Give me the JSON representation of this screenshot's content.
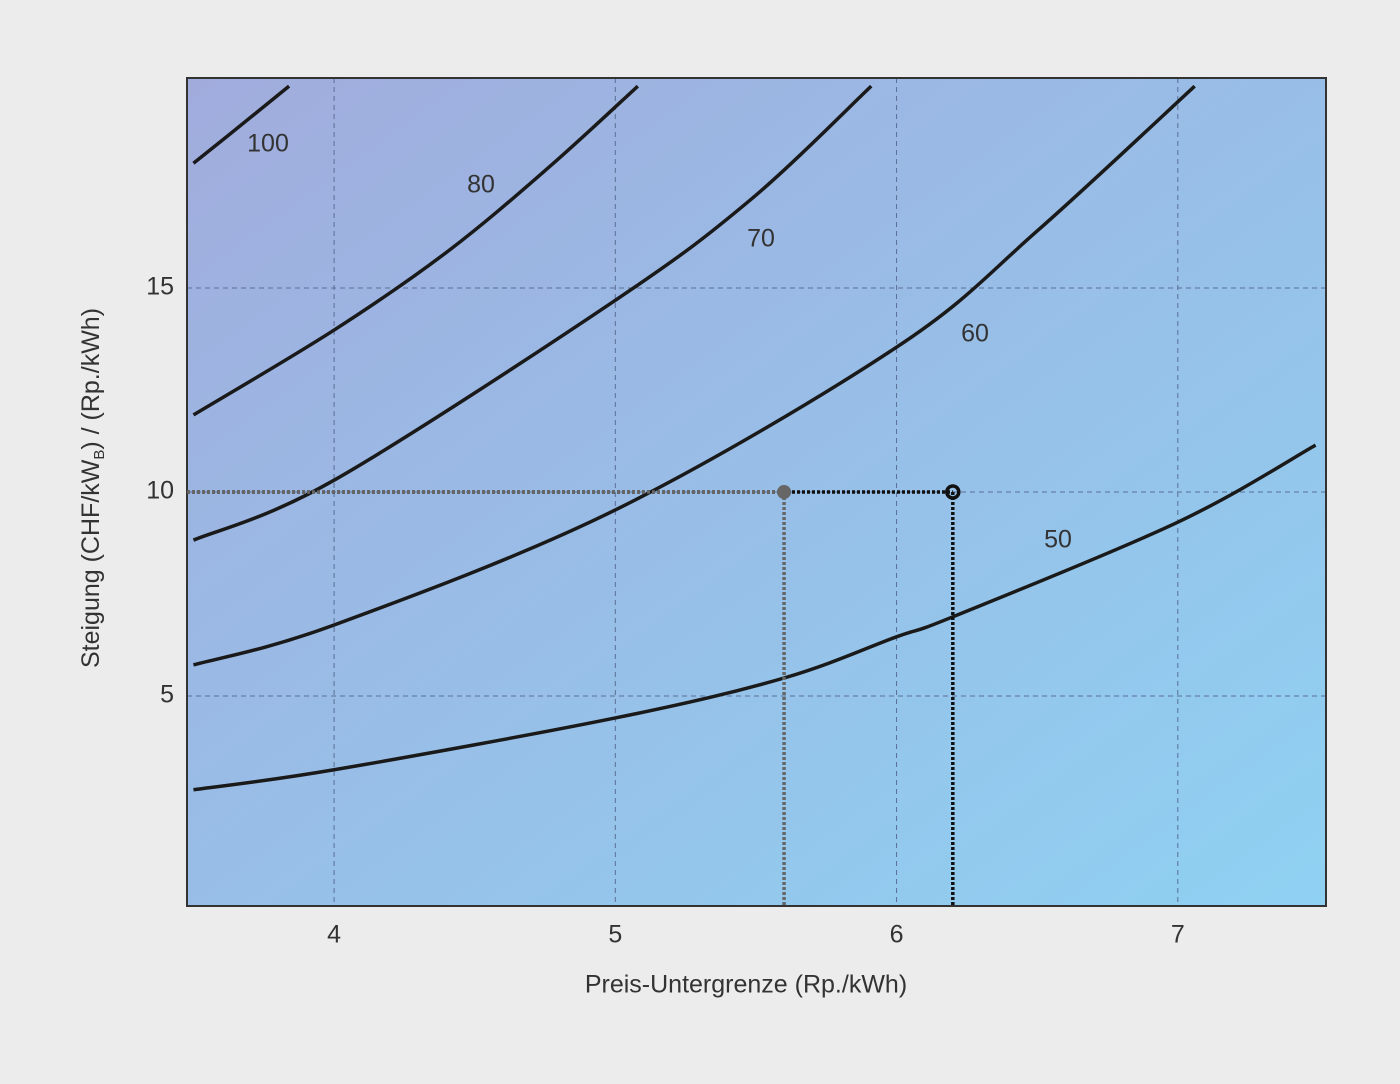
{
  "chart_data": {
    "type": "line",
    "x_label": "Preis-Untergrenze (Rp./kWh)",
    "y_label": {
      "text": "Steigung (CHF/kW",
      "subscript": "B",
      "suffix": ") / (Rp./kWh)"
    },
    "xlim": [
      3.477,
      7.527
    ],
    "ylim": [
      -0.15,
      20.15
    ],
    "xticks": [
      4,
      5,
      6,
      7
    ],
    "yticks": [
      5,
      10,
      15
    ],
    "grid": true,
    "series": [
      {
        "name": "100",
        "color": "#1a1a1a",
        "x": [
          3.5,
          3.67,
          3.84
        ],
        "values": [
          18.06,
          19.0,
          19.95
        ]
      },
      {
        "name": "80",
        "color": "#1a1a1a",
        "x": [
          3.5,
          4,
          4.41,
          4.77,
          5.08
        ],
        "values": [
          11.89,
          13.97,
          15.93,
          18.0,
          19.95
        ]
      },
      {
        "name": "70",
        "color": "#1a1a1a",
        "x": [
          3.5,
          4,
          5,
          5.48,
          5.91
        ],
        "values": [
          8.82,
          10.29,
          14.7,
          17.16,
          19.95
        ]
      },
      {
        "name": "60",
        "color": "#1a1a1a",
        "x": [
          3.5,
          4,
          5,
          6,
          6.5,
          7.06
        ],
        "values": [
          5.76,
          6.74,
          9.56,
          13.55,
          16.4,
          19.95
        ]
      },
      {
        "name": "50",
        "color": "#1a1a1a",
        "x": [
          3.5,
          4,
          5,
          5.6,
          6,
          6.2,
          7,
          7.49
        ],
        "values": [
          2.7,
          3.19,
          4.46,
          5.44,
          6.45,
          6.94,
          9.26,
          11.15
        ]
      }
    ],
    "markers": [
      {
        "x": 6.2,
        "y": 10,
        "color": "#111111",
        "style": "hollow"
      },
      {
        "x": 5.6,
        "y": 10,
        "color": "#666666",
        "style": "filled"
      }
    ]
  }
}
